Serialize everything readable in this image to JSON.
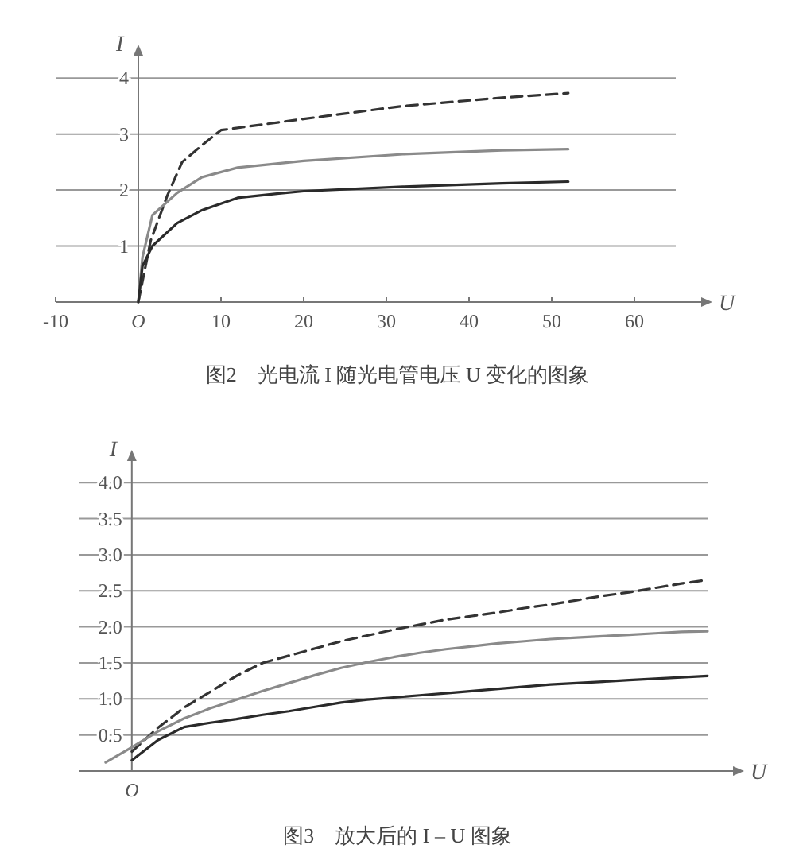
{
  "chart_data": [
    {
      "type": "line",
      "title": "图2　光电流 I 随光电管电压 U 变化的图象",
      "xlabel": "U",
      "ylabel": "I",
      "xlim": [
        -10,
        65
      ],
      "ylim": [
        0,
        4.4
      ],
      "xticks": [
        -10,
        {
          "value": 0,
          "label": "O"
        },
        10,
        20,
        30,
        40,
        50,
        60
      ],
      "yticks": [
        1,
        2,
        3,
        4
      ],
      "grid": "y",
      "series": [
        {
          "color": "#333333",
          "line_style": "dashed",
          "x": [
            0,
            1.5,
            3.5,
            5.3,
            7.7,
            10,
            20,
            32,
            44,
            52
          ],
          "values": [
            0,
            1.1,
            1.9,
            2.5,
            2.8,
            3.07,
            3.27,
            3.5,
            3.65,
            3.73
          ]
        },
        {
          "color": "#8a8a8a",
          "line_style": "solid",
          "x": [
            0,
            0.5,
            1.7,
            4.7,
            7.7,
            12,
            20,
            32,
            44,
            52
          ],
          "values": [
            0,
            0.8,
            1.55,
            1.95,
            2.23,
            2.4,
            2.52,
            2.64,
            2.71,
            2.73
          ]
        },
        {
          "color": "#2a2a2a",
          "line_style": "solid",
          "x": [
            0,
            0.5,
            1.7,
            4.7,
            7.7,
            12,
            17,
            20,
            32,
            44,
            52
          ],
          "values": [
            0,
            0.64,
            1.0,
            1.41,
            1.64,
            1.86,
            1.94,
            1.98,
            2.06,
            2.12,
            2.15
          ]
        }
      ]
    },
    {
      "type": "line",
      "title": "图3　放大后的 I – U 图象",
      "xlabel": "U",
      "ylabel": "I",
      "annotations": [
        "O"
      ],
      "ylim": [
        0,
        4.3
      ],
      "yticks": [
        {
          "value": 0.5,
          "label": "0.5"
        },
        {
          "value": 1,
          "label": "1.0"
        },
        {
          "value": 1.5,
          "label": "1.5"
        },
        {
          "value": 2,
          "label": "2.0"
        },
        {
          "value": 2.5,
          "label": "2.5"
        },
        {
          "value": 3,
          "label": "3.0"
        },
        {
          "value": 3.5,
          "label": "3.5"
        },
        {
          "value": 4,
          "label": "4.0"
        }
      ],
      "grid": "y",
      "categories": [
        null,
        null,
        null,
        null,
        null,
        null,
        null,
        null,
        null,
        null,
        null,
        null,
        null,
        null,
        null,
        null,
        null,
        null,
        null,
        null,
        null,
        null,
        null,
        null,
        null
      ],
      "series": [
        {
          "color": "#333333",
          "line_style": "dashed",
          "values": [
            null,
            null,
            0.27,
            0.6,
            0.88,
            1.1,
            1.32,
            1.5,
            1.6,
            1.7,
            1.8,
            1.88,
            1.96,
            2.03,
            2.1,
            2.15,
            2.2,
            2.26,
            2.31,
            2.37,
            2.43,
            2.48,
            2.54,
            2.6,
            2.65
          ]
        },
        {
          "color": "#8a8a8a",
          "line_style": "solid",
          "values": [
            null,
            0.12,
            0.33,
            0.55,
            0.73,
            0.87,
            0.99,
            1.11,
            1.22,
            1.33,
            1.43,
            1.51,
            1.58,
            1.64,
            1.69,
            1.73,
            1.77,
            1.8,
            1.83,
            1.85,
            1.87,
            1.89,
            1.91,
            1.93,
            1.94
          ]
        },
        {
          "color": "#2a2a2a",
          "line_style": "solid",
          "values": [
            null,
            null,
            0.15,
            0.43,
            0.61,
            0.67,
            0.72,
            0.78,
            0.83,
            0.89,
            0.95,
            0.99,
            1.02,
            1.05,
            1.08,
            1.11,
            1.14,
            1.17,
            1.2,
            1.22,
            1.24,
            1.26,
            1.28,
            1.3,
            1.32
          ]
        }
      ]
    }
  ]
}
